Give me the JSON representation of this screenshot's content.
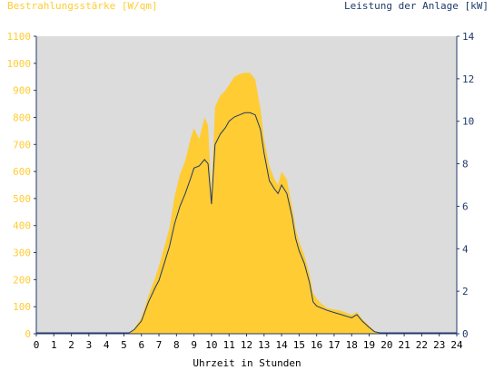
{
  "chart_data": {
    "type": "area",
    "y_left_title": "Bestrahlungsstärke [W/qm]",
    "y_right_title": "Leistung der Anlage [kW]",
    "x_title": "Uhrzeit in Stunden",
    "xlim": [
      0,
      24
    ],
    "ylim_left": [
      0,
      1100
    ],
    "ylim_right": [
      0,
      14
    ],
    "x_ticks": [
      "0",
      "1",
      "2",
      "3",
      "4",
      "5",
      "6",
      "7",
      "8",
      "9",
      "10",
      "11",
      "12",
      "13",
      "14",
      "15",
      "16",
      "17",
      "18",
      "19",
      "20",
      "21",
      "22",
      "23",
      "24"
    ],
    "y_left_ticks": [
      "0",
      "100",
      "200",
      "300",
      "400",
      "500",
      "600",
      "700",
      "800",
      "900",
      "1000",
      "1100"
    ],
    "y_right_ticks": [
      "0",
      "2",
      "4",
      "6",
      "8",
      "10",
      "12",
      "14"
    ],
    "colors": {
      "irradiance": "#ffcc33",
      "power": "#1f3a6b",
      "plot_bg": "#dcdcdc",
      "axis": "#1f3a6b"
    },
    "series": [
      {
        "name": "Bestrahlungsstärke [W/qm]",
        "type": "area",
        "axis": "left",
        "x": [
          5.3,
          5.6,
          6.0,
          6.4,
          6.8,
          7.0,
          7.3,
          7.6,
          7.9,
          8.2,
          8.5,
          8.8,
          9.0,
          9.3,
          9.6,
          9.8,
          10.0,
          10.2,
          10.5,
          10.8,
          11.0,
          11.3,
          11.6,
          11.9,
          12.2,
          12.5,
          12.8,
          13.0,
          13.3,
          13.6,
          13.8,
          14.0,
          14.3,
          14.6,
          14.8,
          15.0,
          15.3,
          15.6,
          15.8,
          16.0,
          16.3,
          16.6,
          17.0,
          17.4,
          17.8,
          18.0,
          18.3,
          18.6,
          19.0,
          19.3,
          19.6,
          19.8
        ],
        "values": [
          0,
          20,
          60,
          140,
          210,
          250,
          320,
          390,
          510,
          590,
          640,
          720,
          760,
          720,
          800,
          770,
          520,
          840,
          880,
          900,
          920,
          950,
          960,
          965,
          965,
          940,
          830,
          720,
          620,
          570,
          550,
          600,
          570,
          470,
          390,
          340,
          290,
          220,
          150,
          130,
          110,
          95,
          90,
          85,
          75,
          70,
          80,
          55,
          30,
          10,
          3,
          0
        ]
      },
      {
        "name": "Leistung der Anlage [kW]",
        "type": "line",
        "axis": "right",
        "x": [
          5.3,
          5.6,
          6.0,
          6.4,
          6.8,
          7.0,
          7.3,
          7.6,
          7.9,
          8.2,
          8.5,
          8.8,
          9.0,
          9.3,
          9.6,
          9.8,
          10.0,
          10.2,
          10.5,
          10.8,
          11.0,
          11.3,
          11.6,
          11.9,
          12.2,
          12.5,
          12.8,
          13.0,
          13.3,
          13.6,
          13.8,
          14.0,
          14.3,
          14.6,
          14.8,
          15.0,
          15.3,
          15.6,
          15.8,
          16.0,
          16.3,
          16.6,
          17.0,
          17.4,
          17.8,
          18.0,
          18.3,
          18.6,
          19.0,
          19.3,
          19.6,
          19.8
        ],
        "values": [
          0,
          0.2,
          0.6,
          1.5,
          2.2,
          2.5,
          3.3,
          4.1,
          5.2,
          6.0,
          6.6,
          7.3,
          7.8,
          7.9,
          8.2,
          8.0,
          6.1,
          8.9,
          9.4,
          9.7,
          10.0,
          10.2,
          10.3,
          10.4,
          10.4,
          10.3,
          9.6,
          8.5,
          7.2,
          6.8,
          6.6,
          7.0,
          6.6,
          5.5,
          4.5,
          3.9,
          3.3,
          2.4,
          1.5,
          1.3,
          1.2,
          1.1,
          1.0,
          0.9,
          0.8,
          0.75,
          0.9,
          0.6,
          0.3,
          0.1,
          0.03,
          0
        ]
      }
    ]
  }
}
